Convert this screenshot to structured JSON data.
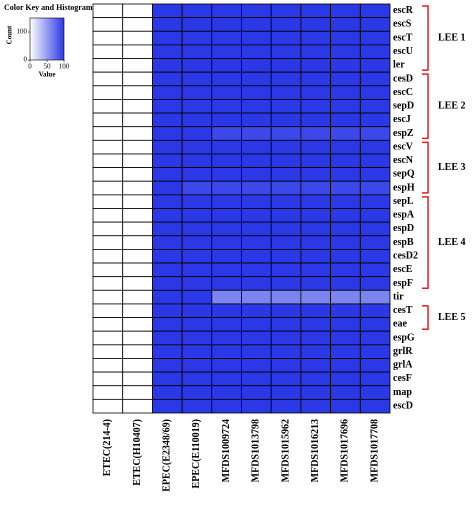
{
  "chart_data": {
    "type": "heatmap",
    "key_title": "Color Key and Histogram",
    "key_xlabel": "Value",
    "key_ylabel": "Count",
    "key_xlim": [
      0,
      100
    ],
    "key_xticks": [
      0,
      50,
      100
    ],
    "key_ylim": [
      0,
      150
    ],
    "key_yticks": [
      0,
      100
    ],
    "colors": [
      "#ffffff",
      "#2b38e6"
    ],
    "rows": [
      "escR",
      "escS",
      "escT",
      "escU",
      "ler",
      "cesD",
      "escC",
      "sepD",
      "escJ",
      "espZ",
      "escV",
      "escN",
      "sepQ",
      "espH",
      "sepL",
      "espA",
      "espD",
      "espB",
      "cesD2",
      "escE",
      "espF",
      "tir",
      "cesT",
      "eae",
      "espG",
      "grlR",
      "grlA",
      "cesF",
      "map",
      "escD"
    ],
    "columns": [
      "ETEC(214-4)",
      "ETEC(H10407)",
      "EPEC(E2348/69)",
      "EPEC(E110019)",
      "MFDS1009724",
      "MFDS1013798",
      "MFDS1015962",
      "MFDS1016213",
      "MFDS1017696",
      "MFDS1017708"
    ],
    "values": [
      [
        0,
        0,
        100,
        100,
        100,
        100,
        100,
        100,
        100,
        100
      ],
      [
        0,
        0,
        100,
        100,
        100,
        100,
        100,
        100,
        100,
        100
      ],
      [
        0,
        0,
        100,
        100,
        100,
        100,
        100,
        100,
        100,
        100
      ],
      [
        0,
        0,
        100,
        100,
        100,
        100,
        100,
        100,
        100,
        100
      ],
      [
        0,
        0,
        100,
        100,
        100,
        100,
        100,
        100,
        100,
        100
      ],
      [
        0,
        0,
        100,
        100,
        100,
        100,
        100,
        100,
        100,
        100
      ],
      [
        0,
        0,
        100,
        100,
        100,
        100,
        100,
        100,
        100,
        100
      ],
      [
        0,
        0,
        100,
        100,
        100,
        100,
        100,
        100,
        100,
        100
      ],
      [
        0,
        0,
        100,
        100,
        100,
        100,
        100,
        100,
        100,
        100
      ],
      [
        0,
        0,
        100,
        100,
        92,
        92,
        92,
        92,
        92,
        92
      ],
      [
        0,
        0,
        100,
        100,
        100,
        100,
        100,
        100,
        100,
        100
      ],
      [
        0,
        0,
        100,
        100,
        100,
        100,
        100,
        100,
        100,
        100
      ],
      [
        0,
        0,
        100,
        100,
        100,
        100,
        100,
        100,
        100,
        100
      ],
      [
        0,
        0,
        100,
        92,
        92,
        92,
        92,
        92,
        92,
        92
      ],
      [
        0,
        0,
        100,
        100,
        100,
        100,
        100,
        100,
        100,
        100
      ],
      [
        0,
        0,
        100,
        100,
        100,
        100,
        100,
        100,
        100,
        100
      ],
      [
        0,
        0,
        100,
        100,
        100,
        100,
        100,
        100,
        100,
        100
      ],
      [
        0,
        0,
        100,
        100,
        100,
        100,
        100,
        100,
        100,
        100
      ],
      [
        0,
        0,
        100,
        100,
        100,
        100,
        100,
        100,
        100,
        100
      ],
      [
        0,
        0,
        100,
        100,
        100,
        100,
        100,
        100,
        100,
        100
      ],
      [
        0,
        0,
        100,
        100,
        100,
        100,
        100,
        100,
        100,
        100
      ],
      [
        0,
        0,
        100,
        100,
        62,
        62,
        62,
        62,
        62,
        62
      ],
      [
        0,
        0,
        100,
        100,
        100,
        100,
        100,
        100,
        100,
        100
      ],
      [
        0,
        0,
        100,
        100,
        100,
        100,
        100,
        100,
        100,
        100
      ],
      [
        0,
        0,
        100,
        100,
        100,
        100,
        100,
        100,
        100,
        100
      ],
      [
        0,
        0,
        100,
        100,
        100,
        100,
        100,
        100,
        100,
        100
      ],
      [
        0,
        0,
        100,
        100,
        100,
        100,
        100,
        100,
        100,
        100
      ],
      [
        0,
        0,
        100,
        100,
        100,
        100,
        100,
        100,
        100,
        100
      ],
      [
        0,
        0,
        100,
        100,
        100,
        100,
        100,
        100,
        100,
        100
      ],
      [
        0,
        0,
        100,
        100,
        100,
        100,
        100,
        100,
        100,
        100
      ]
    ],
    "groups": [
      {
        "label": "LEE 1",
        "rows": [
          0,
          4
        ]
      },
      {
        "label": "LEE 2",
        "rows": [
          5,
          9
        ]
      },
      {
        "label": "LEE 3",
        "rows": [
          10,
          13
        ]
      },
      {
        "label": "LEE 4",
        "rows": [
          14,
          20
        ]
      },
      {
        "label": "LEE 5",
        "rows": [
          22,
          23
        ]
      }
    ],
    "group_color": "#e02020"
  }
}
